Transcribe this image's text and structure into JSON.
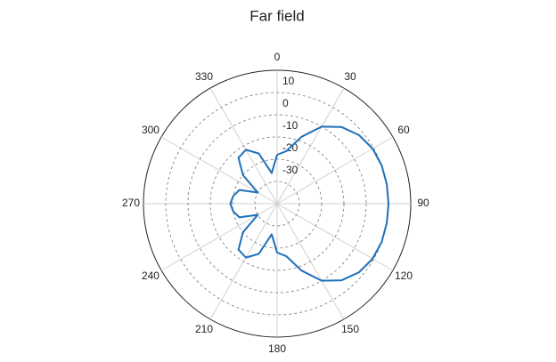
{
  "chart_data": {
    "type": "polar",
    "title": "Far field",
    "theta": [
      0,
      10,
      20,
      30,
      40,
      50,
      60,
      70,
      80,
      90,
      100,
      110,
      120,
      130,
      140,
      150,
      160,
      170,
      180,
      190,
      200,
      210,
      220,
      230,
      240,
      250,
      260,
      270,
      280,
      290,
      300,
      310,
      320,
      330,
      340,
      350,
      360
    ],
    "values": [
      -18,
      -16,
      -8,
      0,
      5,
      8,
      9.5,
      10,
      10,
      10,
      10,
      10,
      9.5,
      8,
      5,
      0,
      -8,
      -16,
      -18,
      -26,
      -16,
      -12,
      -13,
      -20,
      -30,
      -22,
      -20,
      -19,
      -20,
      -22,
      -30,
      -20,
      -13,
      -12,
      -16,
      -26,
      -18
    ],
    "color": "#1f6fba",
    "rlim": [
      -40,
      20
    ],
    "rticks": [
      -30,
      -20,
      -10,
      0,
      10
    ],
    "thetaticks": [
      0,
      30,
      60,
      90,
      120,
      150,
      180,
      210,
      240,
      270,
      300,
      330
    ],
    "grid": true
  }
}
